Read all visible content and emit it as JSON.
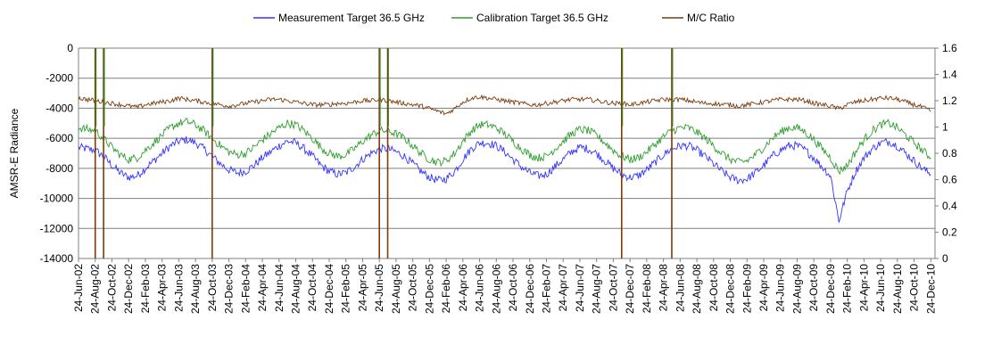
{
  "chart_data": {
    "type": "line",
    "title": "",
    "ylabel": "AMSR-E Radiance",
    "ylabel_right": "",
    "xlabel": "",
    "ylim": [
      -14000,
      0
    ],
    "ylim_right": [
      0,
      1.6
    ],
    "y_ticks": [
      "0",
      "-2000",
      "-4000",
      "-6000",
      "-8000",
      "-10000",
      "-12000",
      "-14000"
    ],
    "y_ticks_right": [
      "1.6",
      "1.4",
      "1.2",
      "1",
      "0.8",
      "0.6",
      "0.4",
      "0.2",
      "0"
    ],
    "grid": "horizontal",
    "legend_position": "top",
    "x_tick_labels": [
      "24-Jun-02",
      "24-Aug-02",
      "24-Oct-02",
      "24-Dec-02",
      "24-Feb-03",
      "24-Apr-03",
      "24-Jun-03",
      "24-Aug-03",
      "24-Oct-03",
      "24-Dec-03",
      "24-Feb-04",
      "24-Apr-04",
      "24-Jun-04",
      "24-Aug-04",
      "24-Oct-04",
      "24-Dec-04",
      "24-Feb-05",
      "24-Apr-05",
      "24-Jun-05",
      "24-Aug-05",
      "24-Oct-05",
      "24-Dec-05",
      "24-Feb-06",
      "24-Apr-06",
      "24-Jun-06",
      "24-Aug-06",
      "24-Oct-06",
      "24-Dec-06",
      "24-Feb-07",
      "24-Apr-07",
      "24-Jun-07",
      "24-Aug-07",
      "24-Oct-07",
      "24-Dec-07",
      "24-Feb-08",
      "24-Apr-08",
      "24-Jun-08",
      "24-Aug-08",
      "24-Oct-08",
      "24-Dec-08",
      "24-Feb-09",
      "24-Apr-09",
      "24-Jun-09",
      "24-Aug-09",
      "24-Oct-09",
      "24-Dec-09",
      "24-Feb-10",
      "24-Apr-10",
      "24-Jun-10",
      "24-Aug-10",
      "24-Oct-10",
      "24-Dec-10"
    ],
    "colors": {
      "measurement": "#3333ff",
      "calibration": "#2e9e2e",
      "ratio": "#7a3b0c",
      "grid": "#7f7f7f",
      "axis": "#808080"
    },
    "series": [
      {
        "name": "Measurement Target 36.5 GHz",
        "axis": "left",
        "x": [
          "2002-06",
          "2002-07",
          "2002-08",
          "2002-09",
          "2002-10",
          "2002-11",
          "2002-12",
          "2003-01",
          "2003-02",
          "2003-03",
          "2003-04",
          "2003-05",
          "2003-06",
          "2003-07",
          "2003-08",
          "2003-09",
          "2003-10",
          "2003-11",
          "2003-12",
          "2004-01",
          "2004-02",
          "2004-03",
          "2004-04",
          "2004-05",
          "2004-06",
          "2004-07",
          "2004-08",
          "2004-09",
          "2004-10",
          "2004-11",
          "2004-12",
          "2005-01",
          "2005-02",
          "2005-03",
          "2005-04",
          "2005-05",
          "2005-06",
          "2005-07",
          "2005-08",
          "2005-09",
          "2005-10",
          "2005-11",
          "2005-12",
          "2006-01",
          "2006-02",
          "2006-03",
          "2006-04",
          "2006-05",
          "2006-06",
          "2006-07",
          "2006-08",
          "2006-09",
          "2006-10",
          "2006-11",
          "2006-12",
          "2007-01",
          "2007-02",
          "2007-03",
          "2007-04",
          "2007-05",
          "2007-06",
          "2007-07",
          "2007-08",
          "2007-09",
          "2007-10",
          "2007-11",
          "2007-12",
          "2008-01",
          "2008-02",
          "2008-03",
          "2008-04",
          "2008-05",
          "2008-06",
          "2008-07",
          "2008-08",
          "2008-09",
          "2008-10",
          "2008-11",
          "2008-12",
          "2009-01",
          "2009-02",
          "2009-03",
          "2009-04",
          "2009-05",
          "2009-06",
          "2009-07",
          "2009-08",
          "2009-09",
          "2009-10",
          "2009-11",
          "2009-12",
          "2010-01",
          "2010-02",
          "2010-03",
          "2010-04",
          "2010-05",
          "2010-06",
          "2010-07",
          "2010-08",
          "2010-09",
          "2010-10",
          "2010-11",
          "2010-12"
        ],
        "y": [
          -6600,
          -6700,
          -6800,
          -7200,
          -7800,
          -8300,
          -8600,
          -8500,
          -8000,
          -7500,
          -7000,
          -6500,
          -6200,
          -6100,
          -6300,
          -6700,
          -7200,
          -7700,
          -8100,
          -8300,
          -8200,
          -7800,
          -7300,
          -6900,
          -6500,
          -6200,
          -6300,
          -6700,
          -7200,
          -7800,
          -8200,
          -8400,
          -8300,
          -7900,
          -7400,
          -7000,
          -6700,
          -6700,
          -6900,
          -7200,
          -7700,
          -8200,
          -8600,
          -8800,
          -8700,
          -8200,
          -7400,
          -6700,
          -6300,
          -6300,
          -6500,
          -6900,
          -7400,
          -7900,
          -8300,
          -8500,
          -8400,
          -7900,
          -7400,
          -6900,
          -6600,
          -6700,
          -7000,
          -7500,
          -8000,
          -8400,
          -8600,
          -8500,
          -8100,
          -7600,
          -7100,
          -6700,
          -6500,
          -6500,
          -6800,
          -7200,
          -7700,
          -8200,
          -8600,
          -8800,
          -8700,
          -8300,
          -7800,
          -7200,
          -6800,
          -6500,
          -6500,
          -6800,
          -7300,
          -7900,
          -8500,
          -11500,
          -9500,
          -8200,
          -7300,
          -6700,
          -6300,
          -6200,
          -6500,
          -7000,
          -7500,
          -8000,
          -8400
        ]
      },
      {
        "name": "Calibration Target 36.5 GHz",
        "axis": "left",
        "x": [
          "2002-06",
          "2002-07",
          "2002-08",
          "2002-09",
          "2002-10",
          "2002-11",
          "2002-12",
          "2003-01",
          "2003-02",
          "2003-03",
          "2003-04",
          "2003-05",
          "2003-06",
          "2003-07",
          "2003-08",
          "2003-09",
          "2003-10",
          "2003-11",
          "2003-12",
          "2004-01",
          "2004-02",
          "2004-03",
          "2004-04",
          "2004-05",
          "2004-06",
          "2004-07",
          "2004-08",
          "2004-09",
          "2004-10",
          "2004-11",
          "2004-12",
          "2005-01",
          "2005-02",
          "2005-03",
          "2005-04",
          "2005-05",
          "2005-06",
          "2005-07",
          "2005-08",
          "2005-09",
          "2005-10",
          "2005-11",
          "2005-12",
          "2006-01",
          "2006-02",
          "2006-03",
          "2006-04",
          "2006-05",
          "2006-06",
          "2006-07",
          "2006-08",
          "2006-09",
          "2006-10",
          "2006-11",
          "2006-12",
          "2007-01",
          "2007-02",
          "2007-03",
          "2007-04",
          "2007-05",
          "2007-06",
          "2007-07",
          "2007-08",
          "2007-09",
          "2007-10",
          "2007-11",
          "2007-12",
          "2008-01",
          "2008-02",
          "2008-03",
          "2008-04",
          "2008-05",
          "2008-06",
          "2008-07",
          "2008-08",
          "2008-09",
          "2008-10",
          "2008-11",
          "2008-12",
          "2009-01",
          "2009-02",
          "2009-03",
          "2009-04",
          "2009-05",
          "2009-06",
          "2009-07",
          "2009-08",
          "2009-09",
          "2009-10",
          "2009-11",
          "2009-12",
          "2010-01",
          "2010-02",
          "2010-03",
          "2010-04",
          "2010-05",
          "2010-06",
          "2010-07",
          "2010-08",
          "2010-09",
          "2010-10",
          "2010-11",
          "2010-12"
        ],
        "y": [
          -5300,
          -5400,
          -5500,
          -6000,
          -6600,
          -7100,
          -7400,
          -7300,
          -6800,
          -6300,
          -5800,
          -5300,
          -5000,
          -4900,
          -5100,
          -5500,
          -6000,
          -6500,
          -6900,
          -7100,
          -7000,
          -6600,
          -6100,
          -5700,
          -5300,
          -5000,
          -5100,
          -5500,
          -6000,
          -6600,
          -7000,
          -7200,
          -7100,
          -6700,
          -6200,
          -5800,
          -5500,
          -5500,
          -5700,
          -6000,
          -6500,
          -7000,
          -7400,
          -7600,
          -7500,
          -7000,
          -6200,
          -5500,
          -5100,
          -5100,
          -5300,
          -5700,
          -6200,
          -6700,
          -7100,
          -7300,
          -7200,
          -6700,
          -6200,
          -5700,
          -5400,
          -5500,
          -5800,
          -6300,
          -6800,
          -7200,
          -7400,
          -7300,
          -6900,
          -6400,
          -5900,
          -5500,
          -5300,
          -5300,
          -5600,
          -6000,
          -6500,
          -7000,
          -7400,
          -7600,
          -7500,
          -7100,
          -6600,
          -6000,
          -5600,
          -5300,
          -5300,
          -5600,
          -6100,
          -6700,
          -7300,
          -8200,
          -7800,
          -6900,
          -6100,
          -5500,
          -5100,
          -5000,
          -5300,
          -5800,
          -6300,
          -6800,
          -7300
        ]
      },
      {
        "name": "M/C Ratio",
        "axis": "right",
        "x": [
          "2002-06",
          "2002-07",
          "2002-08",
          "2002-09",
          "2002-10",
          "2002-11",
          "2002-12",
          "2003-01",
          "2003-02",
          "2003-03",
          "2003-04",
          "2003-05",
          "2003-06",
          "2003-07",
          "2003-08",
          "2003-09",
          "2003-10",
          "2003-11",
          "2003-12",
          "2004-01",
          "2004-02",
          "2004-03",
          "2004-04",
          "2004-05",
          "2004-06",
          "2004-07",
          "2004-08",
          "2004-09",
          "2004-10",
          "2004-11",
          "2004-12",
          "2005-01",
          "2005-02",
          "2005-03",
          "2005-04",
          "2005-05",
          "2005-06",
          "2005-07",
          "2005-08",
          "2005-09",
          "2005-10",
          "2005-11",
          "2005-12",
          "2006-01",
          "2006-02",
          "2006-03",
          "2006-04",
          "2006-05",
          "2006-06",
          "2006-07",
          "2006-08",
          "2006-09",
          "2006-10",
          "2006-11",
          "2006-12",
          "2007-01",
          "2007-02",
          "2007-03",
          "2007-04",
          "2007-05",
          "2007-06",
          "2007-07",
          "2007-08",
          "2007-09",
          "2007-10",
          "2007-11",
          "2007-12",
          "2008-01",
          "2008-02",
          "2008-03",
          "2008-04",
          "2008-05",
          "2008-06",
          "2008-07",
          "2008-08",
          "2008-09",
          "2008-10",
          "2008-11",
          "2008-12",
          "2009-01",
          "2009-02",
          "2009-03",
          "2009-04",
          "2009-05",
          "2009-06",
          "2009-07",
          "2009-08",
          "2009-09",
          "2009-10",
          "2009-11",
          "2009-12",
          "2010-01",
          "2010-02",
          "2010-03",
          "2010-04",
          "2010-05",
          "2010-06",
          "2010-07",
          "2010-08",
          "2010-09",
          "2010-10",
          "2010-11",
          "2010-12"
        ],
        "y": [
          1.22,
          1.21,
          1.2,
          1.19,
          1.18,
          1.17,
          1.16,
          1.15,
          1.17,
          1.18,
          1.19,
          1.2,
          1.22,
          1.21,
          1.2,
          1.19,
          1.18,
          1.17,
          1.16,
          1.17,
          1.18,
          1.19,
          1.2,
          1.21,
          1.21,
          1.2,
          1.19,
          1.18,
          1.17,
          1.17,
          1.17,
          1.18,
          1.18,
          1.19,
          1.2,
          1.2,
          1.21,
          1.2,
          1.19,
          1.18,
          1.17,
          1.16,
          1.14,
          1.12,
          1.1,
          1.14,
          1.19,
          1.22,
          1.23,
          1.22,
          1.21,
          1.2,
          1.19,
          1.18,
          1.17,
          1.17,
          1.18,
          1.19,
          1.2,
          1.21,
          1.21,
          1.21,
          1.2,
          1.19,
          1.18,
          1.18,
          1.17,
          1.18,
          1.19,
          1.2,
          1.21,
          1.21,
          1.21,
          1.2,
          1.19,
          1.18,
          1.18,
          1.17,
          1.17,
          1.16,
          1.17,
          1.18,
          1.19,
          1.2,
          1.21,
          1.21,
          1.21,
          1.2,
          1.18,
          1.17,
          1.16,
          1.14,
          1.17,
          1.19,
          1.2,
          1.21,
          1.22,
          1.22,
          1.21,
          1.19,
          1.17,
          1.15,
          1.12
        ]
      }
    ],
    "dropouts": [
      "2002-08",
      "2002-09",
      "2003-10",
      "2005-06",
      "2005-07",
      "2007-11",
      "2008-05"
    ]
  }
}
